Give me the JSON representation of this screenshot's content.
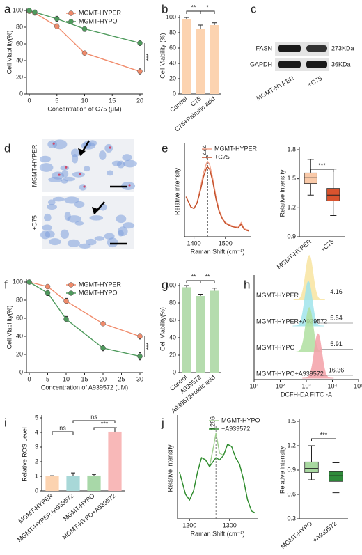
{
  "chart_data": [
    {
      "type": "line",
      "panel": "a",
      "xlabel": "Concentration of C75 (μM)",
      "ylabel": "Cell Viability(%)",
      "x": [
        0,
        1,
        5,
        10,
        20
      ],
      "xlim": [
        0,
        20
      ],
      "xticks": [
        0,
        5,
        10,
        15,
        20
      ],
      "ylim": [
        0,
        100
      ],
      "yticks": [
        0,
        20,
        40,
        60,
        80,
        100
      ],
      "legend": "upper right",
      "series": [
        {
          "name": "MGMT-HYPER",
          "color": "#f08a6a",
          "values": [
            99,
            97,
            81,
            49,
            27
          ],
          "errors": [
            1,
            2,
            3,
            2,
            4
          ]
        },
        {
          "name": "MGMT-HYPO",
          "color": "#4e9a5c",
          "values": [
            100,
            98,
            90,
            78,
            61
          ],
          "errors": [
            1,
            1,
            3,
            3,
            3
          ]
        }
      ],
      "annotations": [
        "***"
      ]
    },
    {
      "type": "bar",
      "panel": "b",
      "ylabel": "Cell Viability (%)",
      "categories": [
        "Control",
        "C75",
        "C75+Palmitic acid"
      ],
      "values": [
        98,
        85,
        90
      ],
      "errors": [
        2,
        5,
        3
      ],
      "color": "#fcd3b0",
      "ylim": [
        0,
        100
      ],
      "yticks": [
        0,
        20,
        40,
        60,
        80,
        100
      ],
      "annotations": [
        "**",
        "*"
      ]
    },
    {
      "type": "spectrum",
      "panel": "e",
      "xlabel": "Raman Shift (cm⁻¹)",
      "ylabel": "Relative intensity",
      "x": [
        1375,
        1390,
        1400,
        1410,
        1420,
        1430,
        1440,
        1444,
        1450,
        1460,
        1470,
        1480,
        1490,
        1500,
        1510,
        1520,
        1530,
        1540,
        1550,
        1560,
        1575
      ],
      "xlim": [
        1370,
        1580
      ],
      "xticks": [
        1400,
        1500
      ],
      "marker": 1444,
      "legend": "upper right",
      "series": [
        {
          "name": "MGMT-HYPER",
          "color": "#f4a48c",
          "values": [
            0.55,
            0.42,
            0.4,
            0.48,
            0.65,
            0.85,
            0.98,
            1.0,
            0.96,
            0.78,
            0.55,
            0.38,
            0.28,
            0.22,
            0.2,
            0.18,
            0.17,
            0.16,
            0.22,
            0.14,
            0.12
          ]
        },
        {
          "name": "+C75",
          "color": "#c4502a",
          "values": [
            0.55,
            0.42,
            0.4,
            0.47,
            0.62,
            0.8,
            0.92,
            0.93,
            0.9,
            0.74,
            0.52,
            0.36,
            0.27,
            0.21,
            0.19,
            0.17,
            0.16,
            0.15,
            0.2,
            0.13,
            0.11
          ]
        }
      ]
    },
    {
      "type": "box",
      "ylabel": "Relative intensity",
      "categories": [
        "MGMT-HYPER",
        "+C75"
      ],
      "stats": [
        [
          1.33,
          1.45,
          1.51,
          1.56,
          1.7
        ],
        [
          1.12,
          1.27,
          1.33,
          1.4,
          1.6
        ]
      ],
      "colors": [
        "#f9c9a8",
        "#d9532e"
      ],
      "ylim": [
        0.9,
        1.8
      ],
      "yticks": [
        0.9,
        1.2,
        1.5,
        1.8
      ],
      "annotations": [
        "***"
      ]
    },
    {
      "type": "line",
      "panel": "f",
      "xlabel": "Concentration of A939572 (μM)",
      "ylabel": "Cell Viability(%)",
      "x": [
        0,
        5,
        10,
        20,
        30
      ],
      "xlim": [
        0,
        30
      ],
      "xticks": [
        0,
        5,
        10,
        15,
        20,
        25,
        30
      ],
      "ylim": [
        0,
        100
      ],
      "yticks": [
        0,
        20,
        40,
        60,
        80,
        100
      ],
      "legend": "upper right",
      "series": [
        {
          "name": "MGMT-HYPER",
          "color": "#f08a6a",
          "values": [
            100,
            95,
            79,
            54,
            40
          ],
          "errors": [
            1,
            2,
            3,
            2,
            3
          ]
        },
        {
          "name": "MGMT-HYPO",
          "color": "#4e9a5c",
          "values": [
            100,
            88,
            59,
            27,
            18
          ],
          "errors": [
            1,
            3,
            3,
            3,
            4
          ]
        }
      ],
      "annotations": [
        "***"
      ]
    },
    {
      "type": "bar",
      "panel": "g",
      "ylabel": "Cell Viability(%)",
      "categories": [
        "Control",
        "A939572",
        "A939572+oleic acid"
      ],
      "values": [
        98,
        88,
        94
      ],
      "errors": [
        2,
        2,
        3
      ],
      "color": "#b5dcae",
      "ylim": [
        0,
        100
      ],
      "yticks": [
        0,
        20,
        40,
        60,
        80,
        100
      ],
      "annotations": [
        "**",
        "**"
      ]
    },
    {
      "type": "flow",
      "panel": "h",
      "xlabel": "DCFH-DA FITC -A",
      "log": true,
      "xlim": [
        10,
        100000
      ],
      "xticks": [
        {
          "value": 10,
          "label": "10¹"
        },
        {
          "value": 100,
          "label": "10²"
        },
        {
          "value": 1000,
          "label": "10³"
        },
        {
          "value": 10000,
          "label": "10⁴"
        },
        {
          "value": 100000,
          "label": "10⁵"
        }
      ],
      "series": [
        {
          "name": "MGMT-HYPER",
          "color": "#f8e4a0",
          "value": 4.16,
          "peak": 1300
        },
        {
          "name": "MGMT-HYPER+A939572",
          "color": "#a0e4ec",
          "value": 5.54,
          "peak": 1200
        },
        {
          "name": "MGMT-HYPO",
          "color": "#b0e0a0",
          "value": 5.91,
          "peak": 1300
        },
        {
          "name": "MGMT-HYPO+A939572",
          "color": "#f4a0a8",
          "value": 16.36,
          "peak": 2800
        }
      ]
    },
    {
      "type": "bar",
      "panel": "i",
      "ylabel": "Relative ROS Level",
      "categories": [
        "MGMT-HYPER",
        "MGMT-HYPER+A939572",
        "MGMT-HYPO",
        "MGMT-HYPO+A939572"
      ],
      "values": [
        1.0,
        1.03,
        1.05,
        4.05
      ],
      "errors": [
        0.04,
        0.2,
        0.08,
        0.28
      ],
      "colors": [
        "#fcd3b0",
        "#a8d8d8",
        "#a8d8a8",
        "#f8b8b8"
      ],
      "ylim": [
        0,
        5
      ],
      "yticks": [
        0,
        1,
        2,
        3,
        4,
        5
      ],
      "annotations": [
        "ns",
        "ns",
        "***"
      ]
    },
    {
      "type": "spectrum",
      "panel": "j",
      "xlabel": "Raman Shift (cm⁻¹)",
      "ylabel": "Relative intensity",
      "x": [
        1175,
        1190,
        1200,
        1210,
        1220,
        1230,
        1240,
        1250,
        1260,
        1266,
        1275,
        1285,
        1295,
        1305,
        1315,
        1325,
        1335,
        1345,
        1355,
        1365
      ],
      "xlim": [
        1170,
        1370
      ],
      "xticks": [
        1200,
        1300
      ],
      "marker": 1266,
      "legend": "upper right",
      "series": [
        {
          "name": "MGMT-HYPO",
          "color": "#a0d090",
          "values": [
            0.55,
            0.35,
            0.3,
            0.38,
            0.55,
            0.68,
            0.66,
            0.6,
            0.78,
            0.9,
            0.72,
            0.7,
            0.8,
            0.78,
            0.68,
            0.62,
            0.48,
            0.3,
            0.2,
            0.18
          ]
        },
        {
          "name": "+A939572",
          "color": "#2e8b2e",
          "values": [
            0.55,
            0.35,
            0.3,
            0.38,
            0.55,
            0.68,
            0.66,
            0.6,
            0.65,
            0.68,
            0.66,
            0.7,
            0.8,
            0.78,
            0.68,
            0.62,
            0.48,
            0.3,
            0.2,
            0.18
          ]
        }
      ]
    },
    {
      "type": "box",
      "ylabel": "Relative intensity",
      "categories": [
        "MGMT-HYPO",
        "+A939572"
      ],
      "stats": [
        [
          0.78,
          0.87,
          0.92,
          1.0,
          1.2
        ],
        [
          0.62,
          0.76,
          0.83,
          0.88,
          0.99
        ]
      ],
      "colors": [
        "#a8d8a0",
        "#2e8b3a"
      ],
      "ylim": [
        0.3,
        1.5
      ],
      "yticks": [
        0.3,
        0.6,
        0.9,
        1.2,
        1.5
      ],
      "annotations": [
        "***"
      ]
    }
  ],
  "blot": {
    "panel": "c",
    "bands": [
      "FASN",
      "GAPDH"
    ],
    "sizes": [
      "273KDa",
      "36KDa"
    ],
    "lanes": [
      "MGMT-HYPER",
      "+C75"
    ]
  },
  "micrographs": {
    "panel": "d",
    "rows": [
      "MGMT-HYPER",
      "+C75"
    ]
  }
}
